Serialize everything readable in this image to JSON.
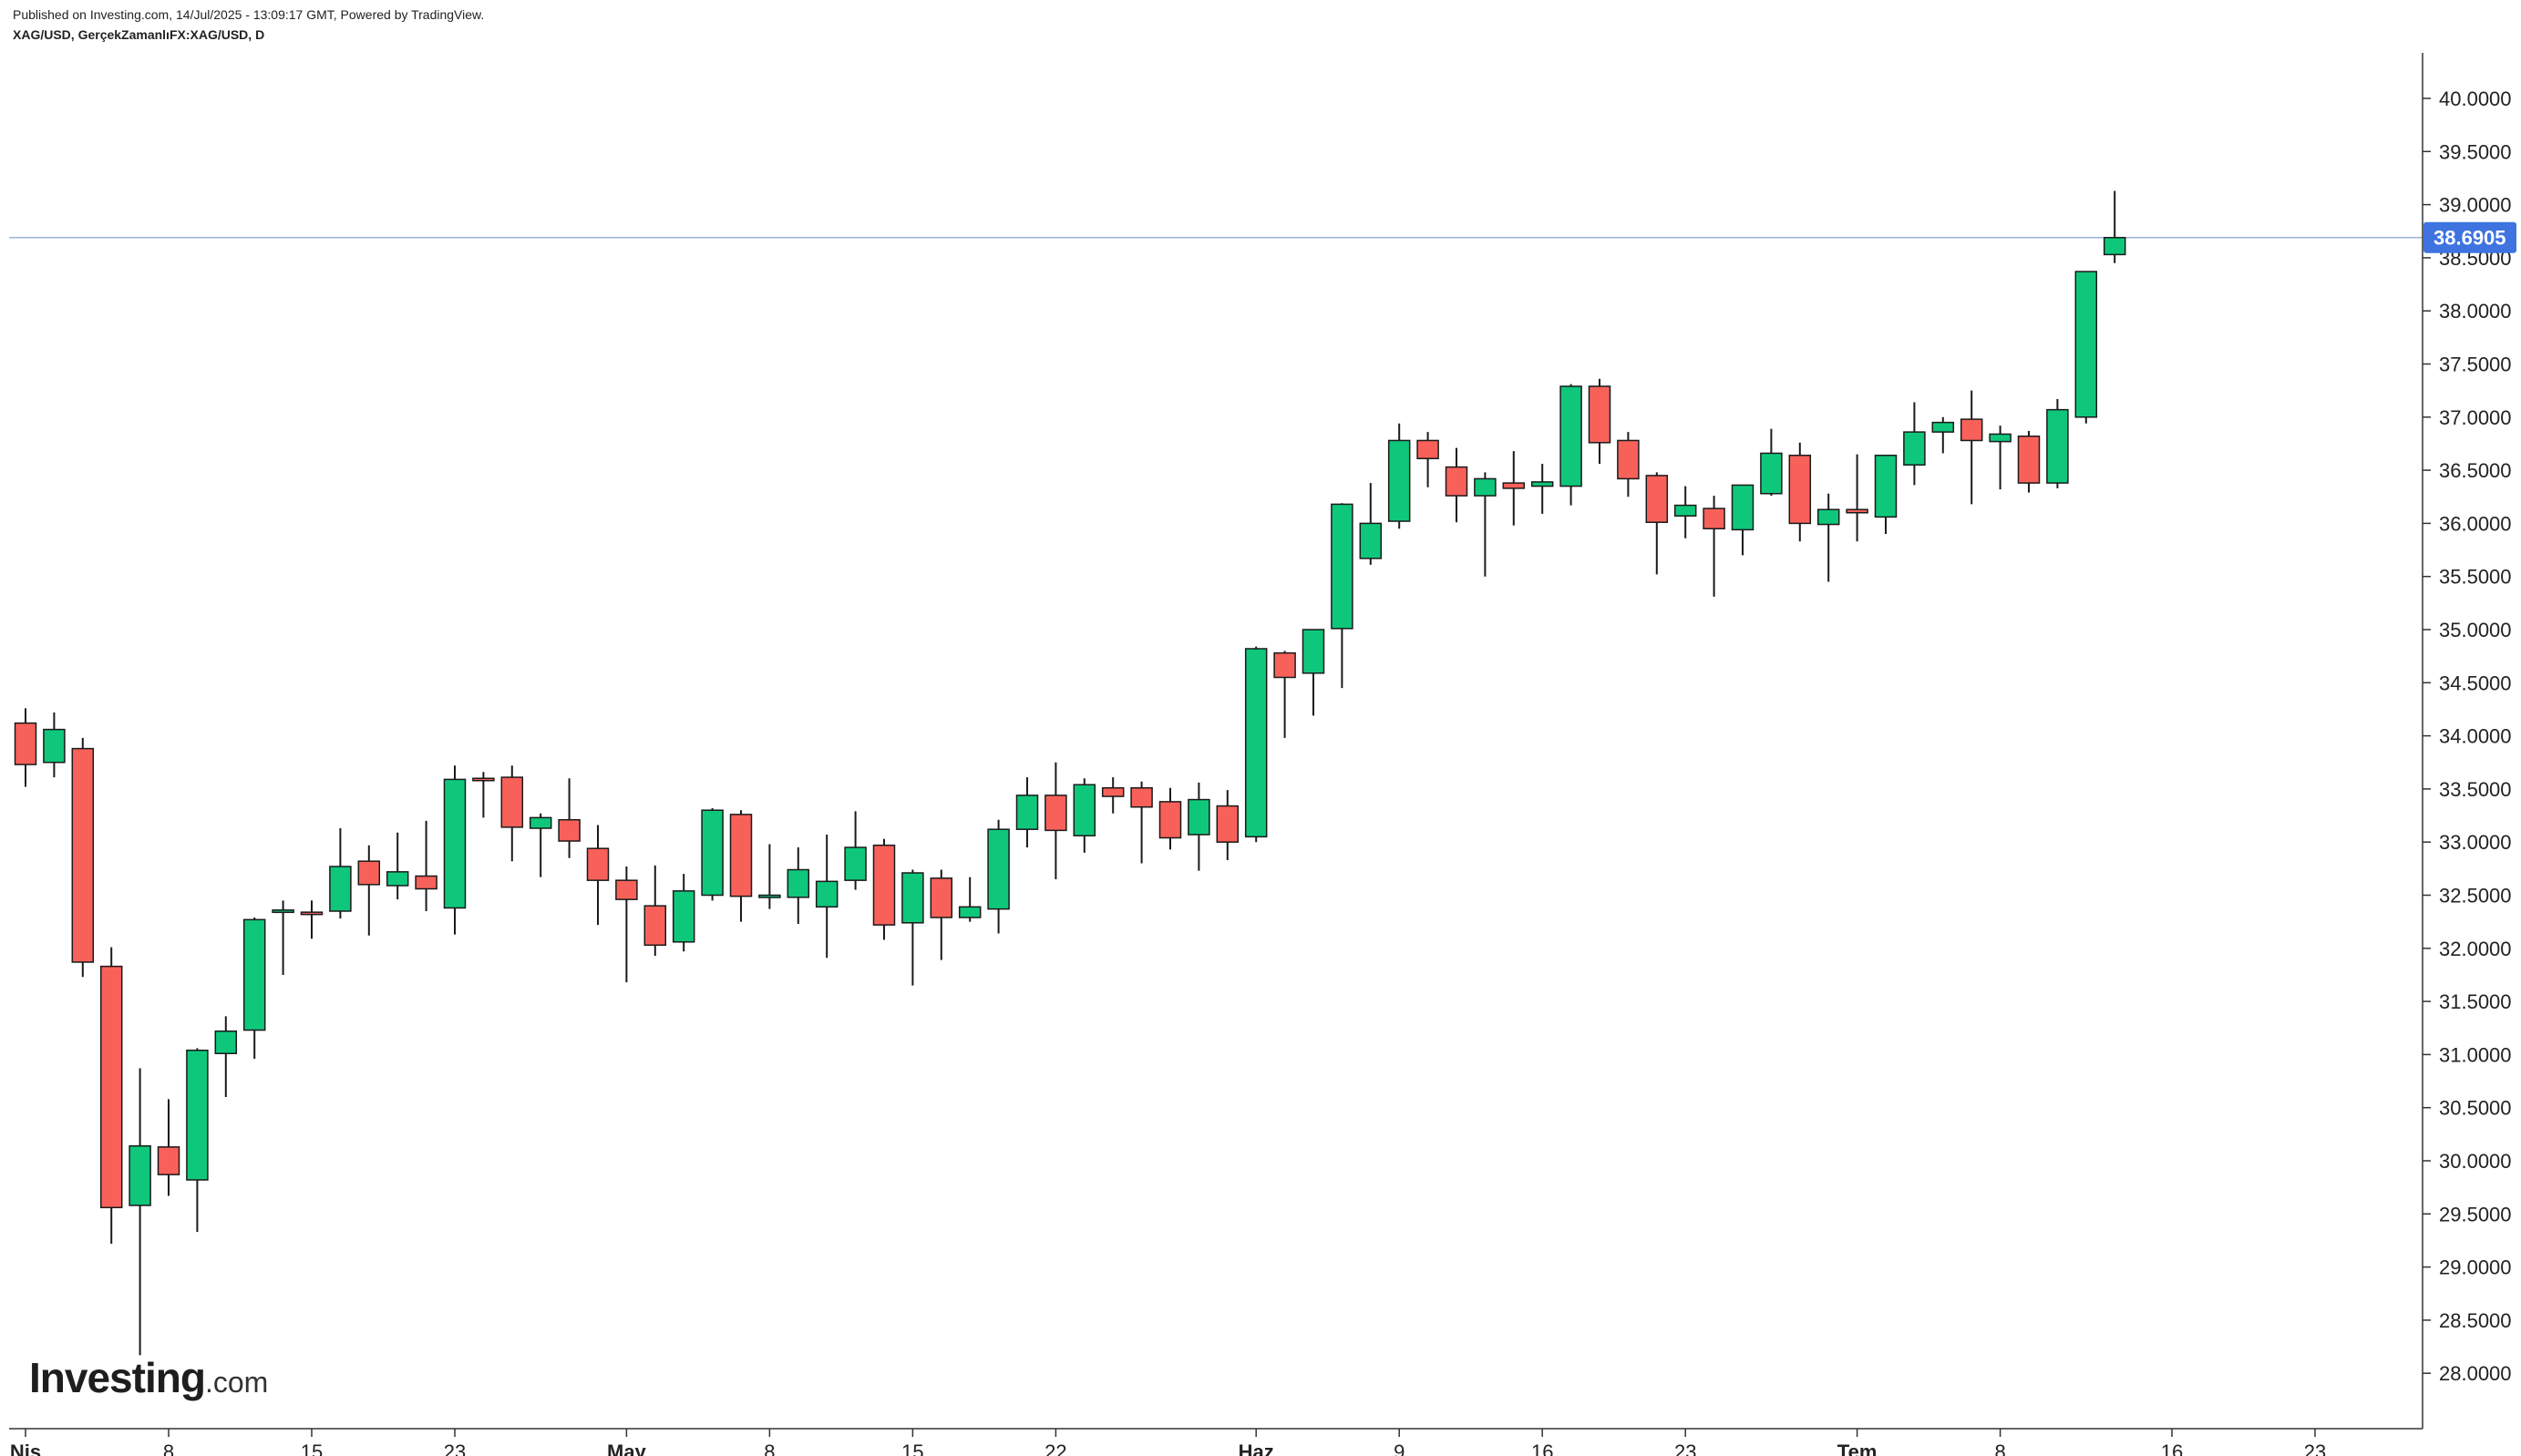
{
  "header": {
    "published": "Published on Investing.com, 14/Jul/2025 - 13:09:17 GMT, Powered by TradingView.",
    "symbol": "XAG/USD, GerçekZamanlıFX:XAG/USD, D"
  },
  "logo": {
    "brand": "Investing",
    "tld": ".com"
  },
  "colors": {
    "up": "#0fc77b",
    "down": "#f8615a",
    "wick": "#1a1a1a",
    "axis": "#333333",
    "price_line": "#9bb3d9",
    "price_label": "#3e73e0"
  },
  "chart_data": {
    "type": "candlestick",
    "title": "XAG/USD, GerçekZamanlıFX:XAG/USD, D",
    "ylim": [
      27.53,
      40.45
    ],
    "y_ticks": [
      "28.0000",
      "28.5000",
      "29.0000",
      "29.5000",
      "30.0000",
      "30.5000",
      "31.0000",
      "31.5000",
      "32.0000",
      "32.5000",
      "33.0000",
      "33.5000",
      "34.0000",
      "34.5000",
      "35.0000",
      "35.5000",
      "36.0000",
      "36.5000",
      "37.0000",
      "37.5000",
      "38.0000",
      "38.5000",
      "39.0000",
      "39.5000",
      "40.0000"
    ],
    "x_labels": [
      {
        "label": "Nis",
        "index": 0,
        "bold": true
      },
      {
        "label": "8",
        "index": 5,
        "bold": false
      },
      {
        "label": "15",
        "index": 10,
        "bold": false
      },
      {
        "label": "23",
        "index": 15,
        "bold": false
      },
      {
        "label": "May",
        "index": 21,
        "bold": true
      },
      {
        "label": "8",
        "index": 26,
        "bold": false
      },
      {
        "label": "15",
        "index": 31,
        "bold": false
      },
      {
        "label": "22",
        "index": 36,
        "bold": false
      },
      {
        "label": "Haz",
        "index": 43,
        "bold": true
      },
      {
        "label": "9",
        "index": 48,
        "bold": false
      },
      {
        "label": "16",
        "index": 53,
        "bold": false
      },
      {
        "label": "23",
        "index": 58,
        "bold": false
      },
      {
        "label": "Tem",
        "index": 64,
        "bold": true
      },
      {
        "label": "8",
        "index": 69,
        "bold": false
      },
      {
        "label": "16",
        "index": 75,
        "bold": false
      },
      {
        "label": "23",
        "index": 80,
        "bold": false
      }
    ],
    "last_price": 38.6905,
    "last_price_label": "38.6905",
    "candles": [
      [
        34.12,
        34.26,
        33.52,
        33.73
      ],
      [
        33.75,
        34.22,
        33.61,
        34.06
      ],
      [
        33.88,
        33.98,
        31.73,
        31.87
      ],
      [
        31.83,
        32.01,
        29.22,
        29.56
      ],
      [
        29.58,
        30.87,
        28.17,
        30.14
      ],
      [
        30.13,
        30.58,
        29.67,
        29.87
      ],
      [
        29.82,
        31.06,
        29.33,
        31.04
      ],
      [
        31.01,
        31.36,
        30.6,
        31.22
      ],
      [
        31.23,
        32.29,
        30.96,
        32.27
      ],
      [
        32.36,
        32.45,
        31.75,
        32.36
      ],
      [
        32.34,
        32.45,
        32.09,
        32.32
      ],
      [
        32.35,
        33.13,
        32.28,
        32.77
      ],
      [
        32.82,
        32.97,
        32.12,
        32.6
      ],
      [
        32.59,
        33.09,
        32.46,
        32.72
      ],
      [
        32.68,
        33.2,
        32.35,
        32.56
      ],
      [
        32.38,
        33.72,
        32.13,
        33.59
      ],
      [
        33.6,
        33.66,
        33.23,
        33.59
      ],
      [
        33.61,
        33.72,
        32.82,
        33.14
      ],
      [
        33.13,
        33.27,
        32.67,
        33.23
      ],
      [
        33.21,
        33.6,
        32.85,
        33.01
      ],
      [
        32.94,
        33.16,
        32.22,
        32.64
      ],
      [
        32.64,
        32.77,
        31.68,
        32.46
      ],
      [
        32.4,
        32.78,
        31.93,
        32.03
      ],
      [
        32.06,
        32.7,
        31.97,
        32.54
      ],
      [
        32.5,
        33.32,
        32.45,
        33.3
      ],
      [
        33.26,
        33.3,
        32.25,
        32.49
      ],
      [
        32.5,
        32.98,
        32.37,
        32.5
      ],
      [
        32.48,
        32.95,
        32.23,
        32.74
      ],
      [
        32.39,
        33.07,
        31.91,
        32.63
      ],
      [
        32.64,
        33.29,
        32.55,
        32.95
      ],
      [
        32.97,
        33.03,
        32.08,
        32.22
      ],
      [
        32.24,
        32.74,
        31.65,
        32.71
      ],
      [
        32.66,
        32.74,
        31.89,
        32.29
      ],
      [
        32.29,
        32.67,
        32.25,
        32.39
      ],
      [
        32.37,
        33.21,
        32.14,
        33.12
      ],
      [
        33.12,
        33.61,
        32.95,
        33.44
      ],
      [
        33.44,
        33.75,
        32.65,
        33.11
      ],
      [
        33.06,
        33.6,
        32.9,
        33.54
      ],
      [
        33.51,
        33.61,
        33.27,
        33.43
      ],
      [
        33.51,
        33.57,
        32.8,
        33.33
      ],
      [
        33.38,
        33.51,
        32.93,
        33.04
      ],
      [
        33.07,
        33.56,
        32.73,
        33.4
      ],
      [
        33.34,
        33.49,
        32.83,
        33.0
      ],
      [
        33.05,
        34.84,
        33.0,
        34.82
      ],
      [
        34.78,
        34.8,
        33.98,
        34.55
      ],
      [
        34.59,
        35.0,
        34.19,
        35.0
      ],
      [
        35.01,
        36.19,
        34.45,
        36.18
      ],
      [
        35.67,
        36.38,
        35.61,
        36.0
      ],
      [
        36.02,
        36.94,
        35.95,
        36.78
      ],
      [
        36.78,
        36.86,
        36.34,
        36.61
      ],
      [
        36.53,
        36.71,
        36.01,
        36.26
      ],
      [
        36.26,
        36.48,
        35.5,
        36.42
      ],
      [
        36.38,
        36.68,
        35.98,
        36.33
      ],
      [
        36.35,
        36.56,
        36.09,
        36.39
      ],
      [
        36.35,
        37.31,
        36.17,
        37.29
      ],
      [
        37.29,
        37.36,
        36.56,
        36.76
      ],
      [
        36.78,
        36.86,
        36.25,
        36.42
      ],
      [
        36.45,
        36.48,
        35.52,
        36.01
      ],
      [
        36.07,
        36.35,
        35.86,
        36.17
      ],
      [
        36.14,
        36.26,
        35.31,
        35.95
      ],
      [
        35.94,
        36.36,
        35.7,
        36.36
      ],
      [
        36.28,
        36.89,
        36.26,
        36.66
      ],
      [
        36.64,
        36.76,
        35.83,
        36.0
      ],
      [
        35.99,
        36.28,
        35.45,
        36.13
      ],
      [
        36.13,
        36.65,
        35.83,
        36.1
      ],
      [
        36.06,
        36.64,
        35.9,
        36.64
      ],
      [
        36.55,
        37.14,
        36.36,
        36.86
      ],
      [
        36.86,
        37.0,
        36.66,
        36.95
      ],
      [
        36.98,
        37.25,
        36.18,
        36.78
      ],
      [
        36.77,
        36.92,
        36.32,
        36.84
      ],
      [
        36.82,
        36.87,
        36.29,
        36.38
      ],
      [
        36.38,
        37.17,
        36.33,
        37.07
      ],
      [
        37.0,
        38.37,
        36.94,
        38.37
      ],
      [
        38.53,
        39.13,
        38.45,
        38.69
      ]
    ]
  }
}
